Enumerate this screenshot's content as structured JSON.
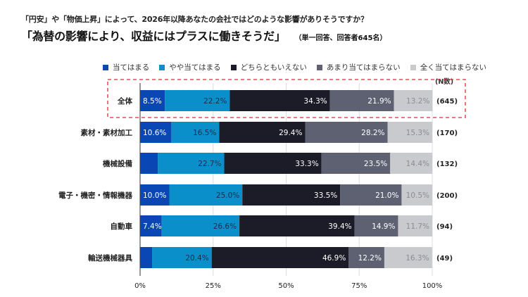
{
  "question": "「円安」や「物価上昇」によって、2026年以降あなたの会社ではどのような影響がありそうですか？",
  "title": "「為替の影響により、収益にはプラスに働きそうだ」",
  "title_note": "（単一回答、回答者645名）",
  "n_header": "(N数)",
  "chart_data": {
    "type": "bar",
    "orientation": "horizontal-stacked-100",
    "title": "「為替の影響により、収益にはプラスに働きそうだ」",
    "subtitle": "「円安」や「物価上昇」によって、2026年以降あなたの会社ではどのような影響がありそうですか？",
    "xlabel": "",
    "ylabel": "",
    "xlim": [
      0,
      100
    ],
    "x_ticks": [
      "0%",
      "25%",
      "50%",
      "75%",
      "100%"
    ],
    "x_tick_values": [
      0,
      25,
      50,
      75,
      100
    ],
    "grid": true,
    "legend_position": "top",
    "highlighted_category": "全体",
    "categories": [
      "全体",
      "素材・素材加工",
      "機械設備",
      "電子・機密・情報機器",
      "自動車",
      "輸送機械器具"
    ],
    "n_values": [
      "(645)",
      "(170)",
      "(132)",
      "(200)",
      "(94)",
      "(49)"
    ],
    "series": [
      {
        "name": "当てはまる",
        "color": "#0a47b5",
        "label_color": "#ffffff",
        "values": [
          8.5,
          10.6,
          6.1,
          10.0,
          7.4,
          4.1
        ]
      },
      {
        "name": "やや当てはまる",
        "color": "#0b8fcb",
        "label_color": "#1c2b4a",
        "values": [
          22.2,
          16.5,
          22.7,
          25.0,
          26.6,
          20.4
        ]
      },
      {
        "name": "どちらともいえない",
        "color": "#1b1c28",
        "label_color": "#ffffff",
        "values": [
          34.3,
          29.4,
          33.3,
          33.5,
          39.4,
          46.9
        ]
      },
      {
        "name": "あまり当てはまらない",
        "color": "#5d6172",
        "label_color": "#ffffff",
        "values": [
          21.9,
          28.2,
          23.5,
          21.0,
          14.9,
          12.2
        ]
      },
      {
        "name": "全く当てはまらない",
        "color": "#c9cacd",
        "label_color": "#8a8d94",
        "values": [
          13.2,
          15.3,
          14.4,
          10.5,
          11.7,
          16.3
        ]
      }
    ]
  }
}
